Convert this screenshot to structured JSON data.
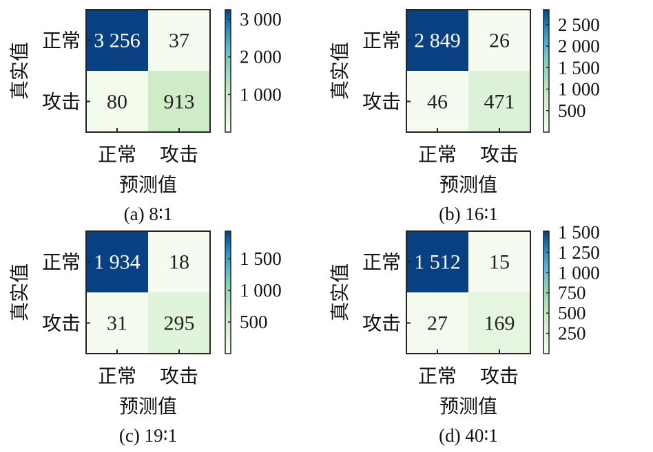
{
  "chart_data": [
    {
      "type": "heatmap",
      "caption": "(a)  8∶1",
      "row_labels": [
        "正常",
        "攻击"
      ],
      "col_labels": [
        "正常",
        "攻击"
      ],
      "ylabel": "真实值",
      "xlabel": "预测值",
      "values": [
        [
          "3 256",
          "37"
        ],
        [
          "80",
          "913"
        ]
      ],
      "numeric": [
        [
          3256,
          37
        ],
        [
          80,
          913
        ]
      ],
      "colorbar": {
        "min": 0,
        "max": 3256,
        "ticks": [
          1000,
          2000,
          3000
        ],
        "tick_labels": [
          "1 000",
          "2 000",
          "3 000"
        ]
      }
    },
    {
      "type": "heatmap",
      "caption": "(b)  16∶1",
      "row_labels": [
        "正常",
        "攻击"
      ],
      "col_labels": [
        "正常",
        "攻击"
      ],
      "ylabel": "真实值",
      "xlabel": "预测值",
      "values": [
        [
          "2 849",
          "26"
        ],
        [
          "46",
          "471"
        ]
      ],
      "numeric": [
        [
          2849,
          26
        ],
        [
          46,
          471
        ]
      ],
      "colorbar": {
        "min": 0,
        "max": 2849,
        "ticks": [
          500,
          1000,
          1500,
          2000,
          2500
        ],
        "tick_labels": [
          "500",
          "1 000",
          "1 500",
          "2 000",
          "2 500"
        ]
      }
    },
    {
      "type": "heatmap",
      "caption": "(c)  19∶1",
      "row_labels": [
        "正常",
        "攻击"
      ],
      "col_labels": [
        "正常",
        "攻击"
      ],
      "ylabel": "真实值",
      "xlabel": "预测值",
      "values": [
        [
          "1 934",
          "18"
        ],
        [
          "31",
          "295"
        ]
      ],
      "numeric": [
        [
          1934,
          18
        ],
        [
          31,
          295
        ]
      ],
      "colorbar": {
        "min": 0,
        "max": 1934,
        "ticks": [
          500,
          1000,
          1500
        ],
        "tick_labels": [
          "500",
          "1 000",
          "1 500"
        ]
      }
    },
    {
      "type": "heatmap",
      "caption": "(d)  40∶1",
      "row_labels": [
        "正常",
        "攻击"
      ],
      "col_labels": [
        "正常",
        "攻击"
      ],
      "ylabel": "真实值",
      "xlabel": "预测值",
      "values": [
        [
          "1 512",
          "15"
        ],
        [
          "27",
          "169"
        ]
      ],
      "numeric": [
        [
          1512,
          15
        ],
        [
          27,
          169
        ]
      ],
      "colorbar": {
        "min": 0,
        "max": 1512,
        "ticks": [
          250,
          500,
          750,
          1000,
          1250,
          1500
        ],
        "tick_labels": [
          "250",
          "500",
          "750",
          "1 000",
          "1 250",
          "1 500"
        ]
      }
    }
  ],
  "colors": {
    "high": "#083f86",
    "low": "#f5fbef",
    "border": "#222222"
  }
}
